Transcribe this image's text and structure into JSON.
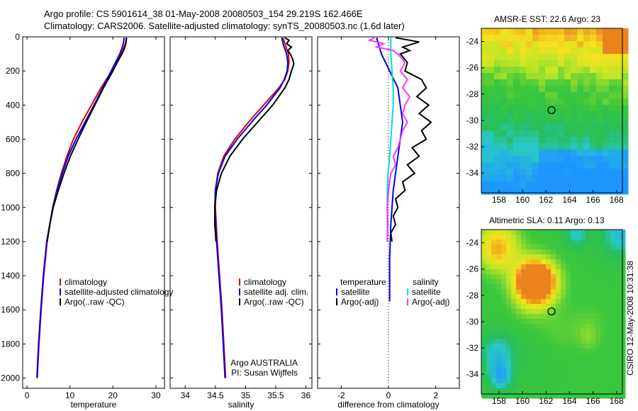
{
  "header": {
    "line1": "Argo profile: CS 5901614_38 01-May-2008 20080503_154 29.219S 162.466E",
    "line2": "Climatology: CARS2006. Satellite-adjusted climatology: synTS_20080503.nc (1.6d later)"
  },
  "side_credit": "CSIRO 12-May-2008 10:31:38",
  "colors": {
    "climatology": "#dd0000",
    "satellite": "#0000ee",
    "argo": "#000000",
    "salinity_satellite": "#00dddd",
    "salinity_argo": "#ff33ff"
  },
  "chart_data": [
    {
      "type": "line",
      "panel": "temperature",
      "xlabel": "temperature",
      "ylabel": "",
      "xlim": [
        -1,
        32
      ],
      "ylim": [
        2060,
        0
      ],
      "x_ticks": [
        0,
        10,
        20,
        30
      ],
      "y_ticks": [
        0,
        200,
        400,
        600,
        800,
        1000,
        1200,
        1400,
        1600,
        1800,
        2000
      ],
      "legend": {
        "position": "lower-right",
        "items": [
          "climatology",
          "satellite-adjusted climatology",
          "Argo(..raw -QC)"
        ]
      },
      "series": [
        {
          "name": "climatology",
          "color": "#dd0000",
          "depth": [
            5,
            30,
            60,
            100,
            150,
            200,
            300,
            400,
            500,
            600,
            700,
            800,
            900,
            1000,
            1200,
            1400,
            1600,
            1800,
            2000
          ],
          "values": [
            23.1,
            23.0,
            22.6,
            21.9,
            20.8,
            19.7,
            17.2,
            15.0,
            12.8,
            10.8,
            9.3,
            8.0,
            6.9,
            6.0,
            4.7,
            3.9,
            3.3,
            2.8,
            2.4
          ]
        },
        {
          "name": "satellite-adjusted climatology",
          "color": "#0000ee",
          "depth": [
            5,
            30,
            60,
            100,
            150,
            200,
            300,
            400,
            500,
            600,
            700,
            800,
            900,
            1000,
            1200,
            1400,
            1600,
            1800,
            2000
          ],
          "values": [
            22.6,
            22.5,
            22.2,
            21.6,
            20.6,
            19.6,
            17.6,
            15.6,
            13.5,
            11.4,
            9.6,
            8.2,
            7.0,
            6.0,
            4.6,
            3.8,
            3.2,
            2.7,
            2.3
          ]
        },
        {
          "name": "Argo(..raw -QC)",
          "color": "#000000",
          "depth": [
            5,
            20,
            40,
            60,
            80,
            100,
            150,
            200,
            300,
            400,
            500,
            600,
            700,
            800,
            900,
            1000,
            1100,
            1200
          ],
          "values": [
            23.2,
            23.1,
            23.0,
            22.8,
            22.5,
            22.1,
            21.0,
            20.0,
            17.8,
            15.8,
            13.8,
            11.9,
            10.1,
            8.6,
            7.3,
            6.1,
            5.3,
            4.7
          ]
        }
      ]
    },
    {
      "type": "line",
      "panel": "salinity",
      "xlabel": "salinity",
      "ylabel": "",
      "xlim": [
        33.75,
        36.1
      ],
      "ylim": [
        2060,
        0
      ],
      "x_ticks": [
        34,
        34.5,
        35,
        35.5,
        36
      ],
      "x_tick_labels": [
        "34",
        "34.5",
        "35",
        "35.5",
        "36"
      ],
      "legend": {
        "position": "lower-right",
        "items": [
          "climatology",
          "satellite adj. clim.",
          "Argo(..raw -QC)"
        ]
      },
      "annotation": [
        "Argo AUSTRALIA",
        "PI: Susan Wijffels"
      ],
      "series": [
        {
          "name": "climatology",
          "color": "#dd0000",
          "depth": [
            5,
            50,
            100,
            150,
            200,
            250,
            300,
            400,
            500,
            600,
            700,
            800,
            900,
            1000,
            1200,
            1400,
            1600,
            1800,
            2000
          ],
          "values": [
            35.62,
            35.66,
            35.71,
            35.72,
            35.7,
            35.65,
            35.55,
            35.3,
            35.05,
            34.82,
            34.64,
            34.54,
            34.5,
            34.5,
            34.53,
            34.57,
            34.61,
            34.64,
            34.67
          ]
        },
        {
          "name": "satellite adj. clim.",
          "color": "#0000ee",
          "depth": [
            5,
            50,
            100,
            150,
            200,
            250,
            300,
            400,
            500,
            600,
            700,
            800,
            900,
            1000,
            1200,
            1400,
            1600,
            1800,
            2000
          ],
          "values": [
            35.6,
            35.63,
            35.68,
            35.7,
            35.69,
            35.64,
            35.57,
            35.35,
            35.1,
            34.86,
            34.66,
            34.55,
            34.5,
            34.49,
            34.52,
            34.56,
            34.6,
            34.63,
            34.66
          ]
        },
        {
          "name": "Argo(..raw -QC)",
          "color": "#000000",
          "depth": [
            5,
            20,
            40,
            60,
            80,
            100,
            130,
            160,
            200,
            250,
            300,
            400,
            500,
            600,
            700,
            800,
            900,
            1000,
            1100,
            1200
          ],
          "values": [
            35.65,
            35.72,
            35.68,
            35.76,
            35.7,
            35.74,
            35.78,
            35.8,
            35.76,
            35.72,
            35.65,
            35.45,
            35.2,
            34.95,
            34.74,
            34.6,
            34.52,
            34.49,
            34.49,
            34.51
          ]
        }
      ]
    },
    {
      "type": "line",
      "panel": "difference",
      "xlabel": "difference from climatology",
      "ylabel": "",
      "xlim": [
        -3,
        3
      ],
      "ylim": [
        2060,
        0
      ],
      "x_ticks": [
        -2,
        0,
        2
      ],
      "legend": {
        "position": "lower-center",
        "headers": [
          "temperature",
          "salinity"
        ],
        "items": [
          "satellite",
          "Argo(-adj)",
          "satellite",
          "Argo(-adj)"
        ]
      },
      "series": [
        {
          "name": "temperature satellite",
          "color": "#0000ee",
          "depth": [
            5,
            100,
            300,
            500,
            700,
            900,
            1100,
            1300,
            1500,
            1550
          ],
          "values": [
            -0.5,
            -0.3,
            0.4,
            0.6,
            0.4,
            0.2,
            0.1,
            0.05,
            0.05,
            0.05
          ]
        },
        {
          "name": "temperature Argo(-adj)",
          "color": "#000000",
          "depth": [
            5,
            30,
            60,
            80,
            100,
            150,
            200,
            250,
            300,
            350,
            400,
            450,
            500,
            550,
            600,
            650,
            700,
            750,
            800,
            850,
            900,
            950,
            1000,
            1050,
            1100,
            1150,
            1200
          ],
          "values": [
            0.3,
            1.3,
            0.6,
            0.9,
            0.5,
            0.8,
            0.7,
            1.4,
            1.6,
            1.2,
            1.7,
            1.3,
            1.8,
            1.4,
            1.6,
            1.0,
            1.3,
            0.8,
            1.1,
            0.6,
            0.7,
            0.3,
            0.4,
            0.2,
            0.3,
            0.1,
            0.15
          ]
        },
        {
          "name": "salinity satellite",
          "color": "#00dddd",
          "depth": [
            5,
            100,
            200,
            300,
            400,
            500,
            600,
            700,
            800,
            900,
            1000,
            1100,
            1200
          ],
          "values": [
            0.1,
            0.1,
            0.15,
            0.2,
            0.2,
            0.15,
            0.1,
            0.05,
            -0.02,
            -0.05,
            -0.05,
            -0.05,
            -0.05
          ]
        },
        {
          "name": "salinity Argo(-adj)",
          "color": "#ff33ff",
          "depth": [
            5,
            20,
            40,
            60,
            80,
            100,
            150,
            200,
            250,
            300,
            350,
            400,
            450,
            500,
            550,
            600,
            650,
            700,
            750,
            800,
            850,
            900,
            950,
            1000,
            1100,
            1200
          ],
          "values": [
            -0.6,
            -0.8,
            -0.2,
            -0.5,
            0.2,
            0.4,
            0.7,
            0.5,
            0.8,
            0.6,
            0.9,
            0.7,
            0.6,
            0.8,
            0.6,
            0.5,
            0.4,
            0.2,
            0.3,
            0.1,
            0.05,
            0.0,
            -0.02,
            -0.05,
            -0.03,
            -0.05
          ]
        }
      ]
    },
    {
      "type": "heatmap",
      "panel": "AMSR-E SST",
      "title": "AMSR-E SST: 22.6  Argo: 23",
      "xlim": [
        156.5,
        168.5
      ],
      "ylim": [
        -35.5,
        -23
      ],
      "x_ticks": [
        158,
        160,
        162,
        164,
        166,
        168
      ],
      "y_ticks": [
        -24,
        -26,
        -28,
        -30,
        -32,
        -34
      ],
      "marker": {
        "lon": 162.47,
        "lat": -29.22
      }
    },
    {
      "type": "heatmap",
      "panel": "Altimetric SLA",
      "title": "Altimetric SLA: 0.11  Argo: 0.13",
      "xlim": [
        156.5,
        168.5
      ],
      "ylim": [
        -35.5,
        -23
      ],
      "x_ticks": [
        158,
        160,
        162,
        164,
        166,
        168
      ],
      "y_ticks": [
        -24,
        -26,
        -28,
        -30,
        -32,
        -34
      ],
      "marker": {
        "lon": 162.47,
        "lat": -29.22
      }
    }
  ]
}
